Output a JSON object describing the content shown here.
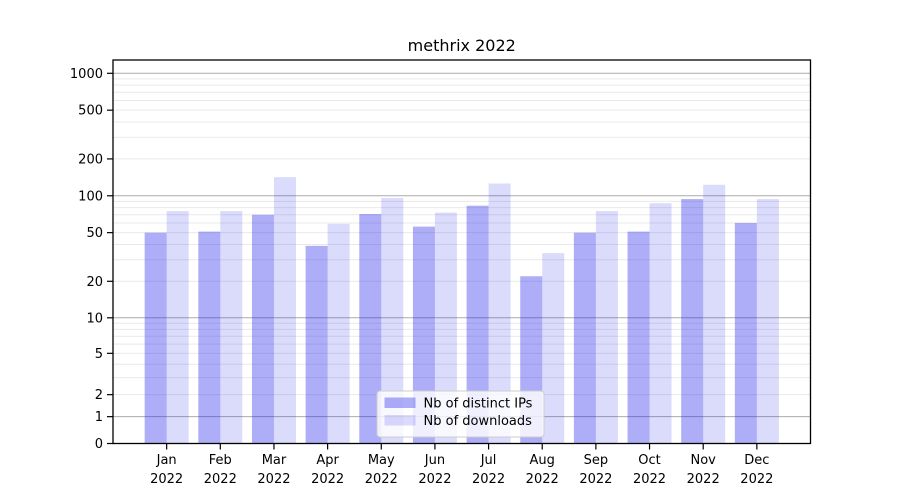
{
  "chart_data": {
    "type": "bar",
    "title": "methrix 2022",
    "categories": [
      "Jan 2022",
      "Feb 2022",
      "Mar 2022",
      "Apr 2022",
      "May 2022",
      "Jun 2022",
      "Jul 2022",
      "Aug 2022",
      "Sep 2022",
      "Oct 2022",
      "Nov 2022",
      "Dec 2022"
    ],
    "series": [
      {
        "name": "Nb of distinct IPs",
        "key": "distinct-ips",
        "color": "rgba(30,30,235,0.36)",
        "values": [
          50,
          51,
          70,
          39,
          71,
          56,
          83,
          22,
          50,
          51,
          94,
          60
        ]
      },
      {
        "name": "Nb of downloads",
        "key": "downloads",
        "color": "rgba(30,30,235,0.16)",
        "values": [
          75,
          75,
          142,
          59,
          96,
          73,
          126,
          34,
          75,
          87,
          123,
          94
        ]
      }
    ],
    "yscale": "symlog",
    "ylim": [
      0,
      1275
    ],
    "y_ticks": [
      0,
      1,
      2,
      5,
      10,
      20,
      50,
      100,
      200,
      500,
      1000
    ],
    "y_major_gridlines": [
      1,
      10,
      100,
      1000
    ],
    "y_minor_gridlines": [
      2,
      3,
      4,
      5,
      6,
      7,
      8,
      9,
      20,
      30,
      40,
      50,
      60,
      70,
      80,
      90,
      200,
      300,
      400,
      500,
      600,
      700,
      800,
      900
    ],
    "xlabel": "",
    "ylabel": "",
    "grid": "horizontal major+minor",
    "legend_position": "lower center",
    "colors": {
      "background": "#ffffff",
      "bar_distinct_ips_rendered": "#aeaef8",
      "bar_downloads_rendered": "#dbdbfc",
      "major_grid": "#ababab",
      "minor_grid": "#e9e9e9",
      "axis": "#000000",
      "legend_border": "#cccccc"
    }
  }
}
